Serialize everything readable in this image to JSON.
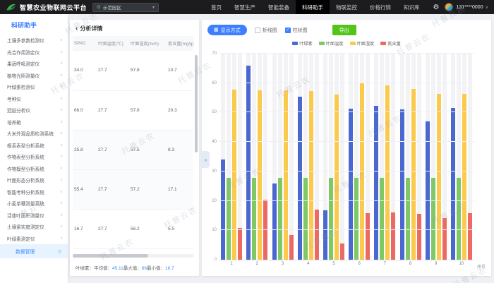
{
  "topbar": {
    "brand": "智慧农业物联网云平台",
    "farm_selector": "示范园区",
    "nav": [
      "首页",
      "智慧生产",
      "智能装备",
      "科研助手",
      "物联监控",
      "价格行情",
      "知识库"
    ],
    "nav_active_index": 3,
    "user_phone": "131****0000"
  },
  "sidebar": {
    "header": "科研助手",
    "items": [
      {
        "label": "土壤多参数检测仪"
      },
      {
        "label": "光合作用测定仪"
      },
      {
        "label": "果蔬呼吸测定仪"
      },
      {
        "label": "植物光照测量仪"
      },
      {
        "label": "叶绿素检测仪"
      },
      {
        "label": "考种仪"
      },
      {
        "label": "冠层分析仪"
      },
      {
        "label": "培养箱"
      },
      {
        "label": "大米外观品质检测系统"
      },
      {
        "label": "根系表型分析系统"
      },
      {
        "label": "作物表型分析系统"
      },
      {
        "label": "作物模型分析系统"
      },
      {
        "label": "叶面形态分析系统"
      },
      {
        "label": "智能考种分析系统"
      },
      {
        "label": "小麦单穗测量系统"
      },
      {
        "label": "活体叶面积测量仪"
      },
      {
        "label": "土壤紧实度测定仪"
      },
      {
        "label": "叶绿素测定仪",
        "expanded": true,
        "children": [
          {
            "label": "数据管理",
            "active": true,
            "starred": true
          }
        ]
      }
    ]
  },
  "table_panel": {
    "back_icon": "‹",
    "title": "分析详情",
    "columns": [
      "SPAD",
      "叶面温度(℃)",
      "叶面湿度(%rh)",
      "氮含量(mg/g)"
    ],
    "rows": [
      [
        "34.0",
        "27.7",
        "57.8",
        "10.7"
      ],
      [
        "66.0",
        "27.7",
        "57.6",
        "20.3"
      ],
      [
        "25.8",
        "27.7",
        "57.5",
        "8.3"
      ],
      [
        "55.4",
        "27.7",
        "57.2",
        "17.1"
      ],
      [
        "16.7",
        "27.7",
        "56.2",
        "5.5"
      ]
    ],
    "stats": {
      "prefix": "叶绿素：",
      "avg_label": "平均值：",
      "avg": "45.11",
      "max_label": "最大值：",
      "max": "66",
      "min_label": "最小值：",
      "min": "16.7"
    }
  },
  "chart_panel": {
    "display_mode_label": "显示方式",
    "line_label": "折线图",
    "bar_label": "柱状图",
    "line_checked": false,
    "bar_checked": true,
    "export_label": "导出",
    "collapse_icon": "«"
  },
  "chart_data": {
    "type": "bar",
    "categories": [
      "1",
      "2",
      "3",
      "4",
      "5",
      "6",
      "7",
      "8",
      "9",
      "10"
    ],
    "series": [
      {
        "name": "叶绿素",
        "color": "#4a68cf",
        "values": [
          34.0,
          66.0,
          25.8,
          55.4,
          16.7,
          51.2,
          52.3,
          51.1,
          47.1,
          51.5
        ]
      },
      {
        "name": "叶面温度",
        "color": "#7ec865",
        "values": [
          27.7,
          27.7,
          27.7,
          27.7,
          27.7,
          27.7,
          27.7,
          27.7,
          27.7,
          27.7
        ]
      },
      {
        "name": "叶面湿度",
        "color": "#fbc94b",
        "values": [
          57.8,
          57.6,
          57.5,
          57.2,
          56.2,
          60.0,
          59.2,
          58.0,
          56.3,
          56.4
        ]
      },
      {
        "name": "氮含量",
        "color": "#ec6a63",
        "values": [
          10.7,
          20.3,
          8.3,
          17.1,
          5.5,
          15.8,
          16.0,
          15.5,
          14.1,
          15.8
        ]
      }
    ],
    "title": "",
    "xlabel": "序号",
    "ylabel": "",
    "ylim": [
      0,
      70
    ],
    "ytick_step": 10,
    "grid": true,
    "legend_position": "top-center",
    "bar_background": true
  },
  "watermark": "托普云农",
  "colors": {
    "accent_blue": "#3d7fff",
    "export_green": "#52c41a",
    "topbar_bg": "#1c1c1e",
    "active_highlight_bg": "#e7f3ff",
    "page_bg": "#eef0f4"
  }
}
